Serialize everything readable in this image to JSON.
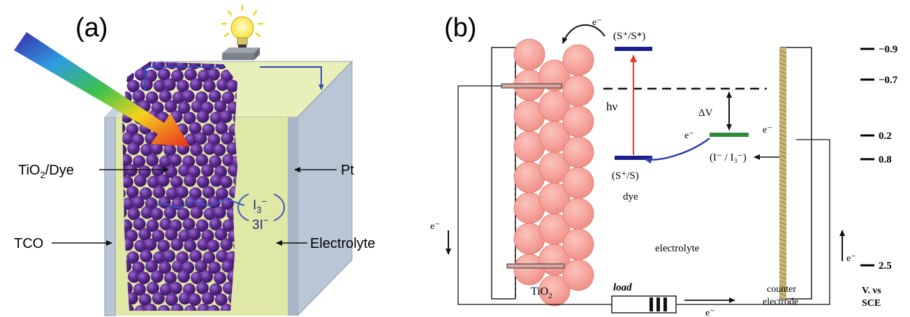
{
  "panel_a": {
    "label": "(a)",
    "tio2_dye_label": "TiO",
    "tio2_dye_sub": "2",
    "tio2_dye_suffix": "/Dye",
    "pt_label": "Pt",
    "tco_label": "TCO",
    "electrolyte_label": "Electrolyte",
    "triiodide_label": "I",
    "triiodide_sub": "3",
    "triiodide_sup": "−",
    "iodide_label": "3I",
    "iodide_sup": "−",
    "colors": {
      "particle": "#5b2a8c",
      "electrolyte": "#dfe8a4",
      "electrode": "#b9c6d6",
      "bulb": "#ffe84a"
    }
  },
  "panel_b": {
    "label": "(b)",
    "excited_state": "(S⁺/S*)",
    "ground_state": "(S⁺/S)",
    "dye_label": "dye",
    "redox_couple": "(I⁻ / I₃⁻)",
    "hv_label": "hν",
    "delta_v": "ΔV",
    "electron": "e⁻",
    "tio2_label": "TiO",
    "tio2_sub": "2",
    "electrolyte_label": "electrolyte",
    "load_label": "load",
    "counter_electrode_line1": "counter",
    "counter_electrode_line2": "electrode",
    "axis_line1": "V. vs",
    "axis_line2": "SCE",
    "potential_ticks": [
      "−0.9",
      "−0.7",
      "0.2",
      "0.8",
      "2.5"
    ],
    "colors": {
      "tio2": "#f7a19a",
      "level_dye": "#1a1f8c",
      "level_redox": "#2e8b3a",
      "excitation_arrow": "#e8392b",
      "electron_arrow": "#2a3bb0",
      "counter_electrode": "#c9b77a"
    }
  }
}
